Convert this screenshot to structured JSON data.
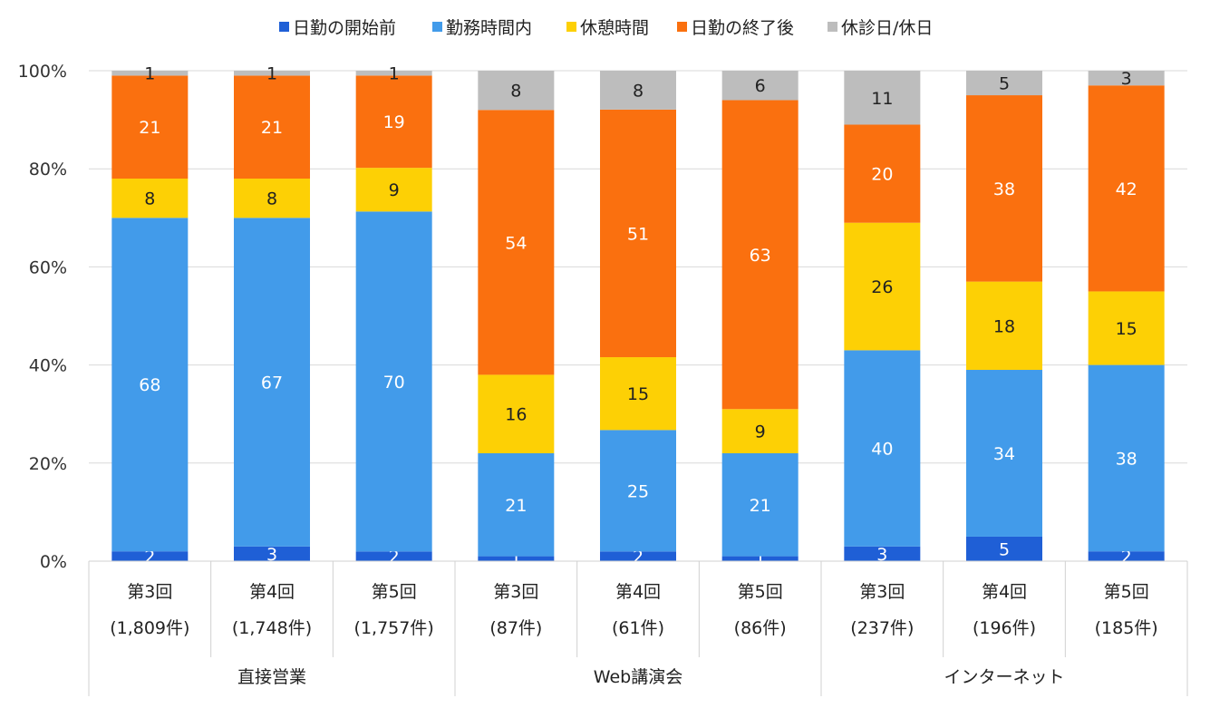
{
  "chart_data": {
    "type": "bar",
    "stacked": true,
    "normalized_percent": true,
    "yticks": [
      "0%",
      "20%",
      "40%",
      "60%",
      "80%",
      "100%"
    ],
    "ylim": [
      0,
      100
    ],
    "grid": true,
    "legend_position": "top",
    "series": [
      {
        "name": "日勤の開始前",
        "color": "#1f5fd6",
        "values": [
          2,
          3,
          2,
          1,
          2,
          1,
          3,
          5,
          2
        ],
        "label_color": "#ffffff"
      },
      {
        "name": "勤務時間内",
        "color": "#429bea",
        "values": [
          68,
          67,
          70,
          21,
          25,
          21,
          40,
          34,
          38
        ],
        "label_color": "#ffffff"
      },
      {
        "name": "休憩時間",
        "color": "#fdd005",
        "values": [
          8,
          8,
          9,
          16,
          15,
          9,
          26,
          18,
          15
        ],
        "label_color": "#222222"
      },
      {
        "name": "日勤の終了後",
        "color": "#fa700f",
        "values": [
          21,
          21,
          19,
          54,
          51,
          63,
          20,
          38,
          42
        ],
        "label_color": "#ffffff"
      },
      {
        "name": "休診日/休日",
        "color": "#bdbdbd",
        "values": [
          1,
          1,
          1,
          8,
          8,
          6,
          11,
          5,
          3
        ],
        "label_color": "#222222"
      }
    ],
    "categories": [
      {
        "round": "第3回",
        "count": "(1,809件)",
        "group": 0
      },
      {
        "round": "第4回",
        "count": "(1,748件)",
        "group": 0
      },
      {
        "round": "第5回",
        "count": "(1,757件)",
        "group": 0
      },
      {
        "round": "第3回",
        "count": "(87件)",
        "group": 1
      },
      {
        "round": "第4回",
        "count": "(61件)",
        "group": 1
      },
      {
        "round": "第5回",
        "count": "(86件)",
        "group": 1
      },
      {
        "round": "第3回",
        "count": "(237件)",
        "group": 2
      },
      {
        "round": "第4回",
        "count": "(196件)",
        "group": 2
      },
      {
        "round": "第5回",
        "count": "(185件)",
        "group": 2
      }
    ],
    "groups": [
      "直接営業",
      "Web講演会",
      "インターネット"
    ]
  }
}
